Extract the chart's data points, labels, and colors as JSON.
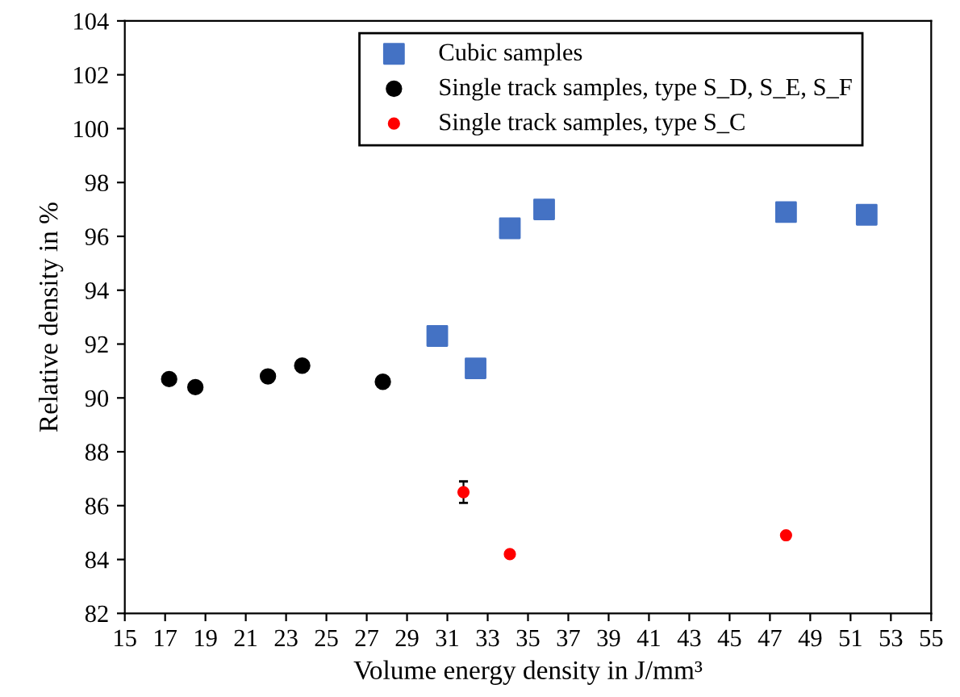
{
  "chart_data": {
    "type": "scatter",
    "xlabel": "Volume energy density in J/mm³",
    "ylabel": "Relative density in %",
    "xlim": [
      15,
      55
    ],
    "xticks": [
      15,
      17,
      19,
      21,
      23,
      25,
      27,
      29,
      31,
      33,
      35,
      37,
      39,
      41,
      43,
      45,
      47,
      49,
      51,
      53,
      55
    ],
    "ylim": [
      82,
      104
    ],
    "yticks": [
      82,
      84,
      86,
      88,
      90,
      92,
      94,
      96,
      98,
      100,
      102,
      104
    ],
    "grid": false,
    "legend": "top right",
    "series": [
      {
        "name": "Cubic samples",
        "color": "#4472c4",
        "marker": "square",
        "x": [
          30.5,
          32.4,
          34.1,
          35.8,
          47.8,
          51.8
        ],
        "values": [
          92.3,
          91.1,
          96.3,
          97.0,
          96.9,
          96.8
        ]
      },
      {
        "name": "Single track samples, type S_D, S_E, S_F",
        "color": "#000000",
        "marker": "circle",
        "x": [
          17.2,
          18.5,
          22.1,
          23.8,
          27.8
        ],
        "values": [
          90.7,
          90.4,
          90.8,
          91.2,
          90.6
        ]
      },
      {
        "name": "Single track samples, type S_C",
        "color": "#ff0000",
        "marker": "circle",
        "x": [
          31.8,
          34.1,
          47.8
        ],
        "values": [
          86.5,
          84.2,
          84.9
        ],
        "errors": [
          0.4,
          null,
          null
        ]
      }
    ]
  }
}
